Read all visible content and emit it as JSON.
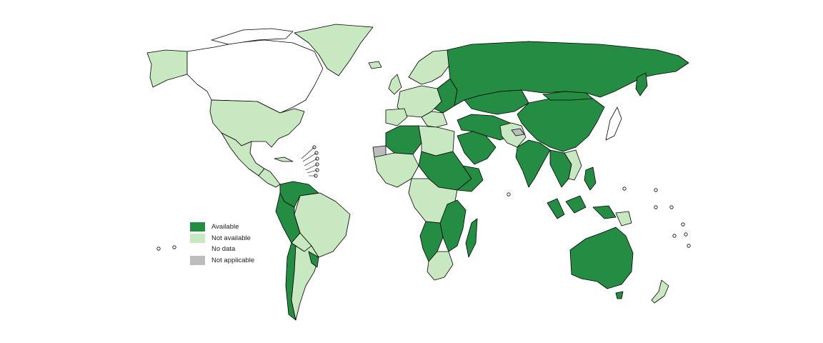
{
  "colors": {
    "available": "#258d43",
    "not_available": "#c7e8c0",
    "no_data": "#ffffff",
    "not_applicable": "#bdbdbd"
  },
  "legend": [
    {
      "key": "available",
      "label": "Available"
    },
    {
      "key": "not_available",
      "label": "Not available"
    },
    {
      "key": "no_data",
      "label": "No data"
    },
    {
      "key": "not_applicable",
      "label": "Not applicable"
    }
  ]
}
